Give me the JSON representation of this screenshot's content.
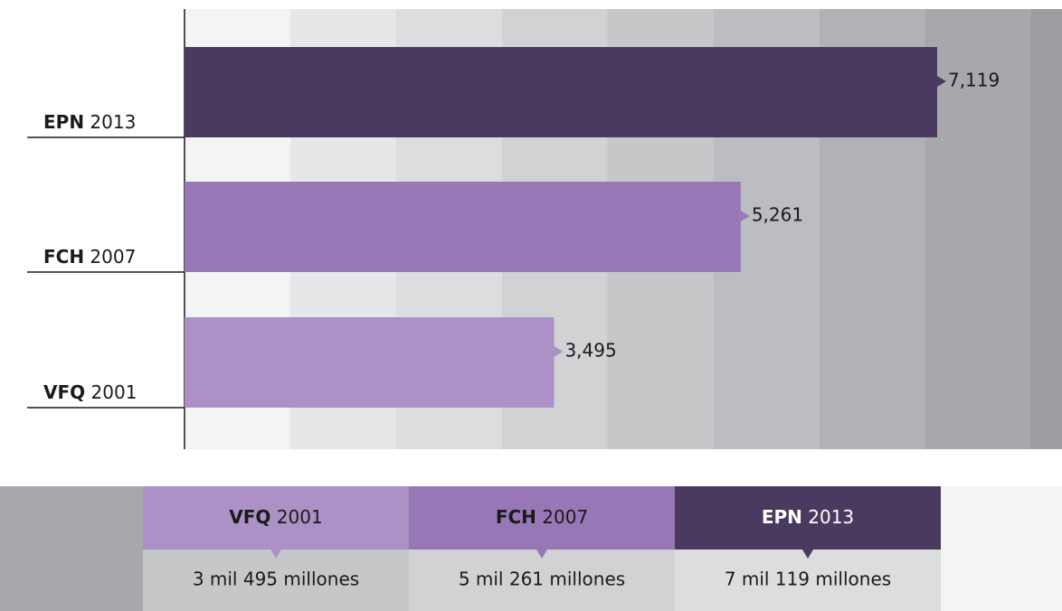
{
  "chart_data": {
    "type": "barh",
    "categories": [
      "EPN 2013",
      "FCH 2007",
      "VFQ 2001"
    ],
    "values": [
      7119,
      5261,
      3495
    ],
    "value_labels": [
      "7,119",
      "5,261",
      "3,495"
    ],
    "colors": [
      "#4b3a5f",
      "#9877b6",
      "#ab91c5"
    ],
    "xlim": [
      0,
      8300
    ],
    "xticks": [
      0,
      1000,
      2000,
      3000,
      4000,
      5000,
      6000,
      7000,
      8000
    ],
    "band_colors": [
      "#f3f4f4",
      "#e6e7e8",
      "#dcdddf",
      "#d1d2d4",
      "#c6c7c9",
      "#bcbdc0",
      "#b1b2b5",
      "#a7a8ab",
      "#9d9ea1"
    ]
  },
  "table": {
    "headers": [
      "VFQ 2001",
      "FCH 2007",
      "EPN 2013"
    ],
    "header_colors": [
      "#ab91c5",
      "#9877b6",
      "#4b3a5f"
    ],
    "amounts": [
      "3 mil 495 millones",
      "5 mil 261 millones",
      "7 mil 119 millones"
    ],
    "amount_colors": [
      "#c6c7c9",
      "#d1d2d4",
      "#dcdddf"
    ]
  }
}
